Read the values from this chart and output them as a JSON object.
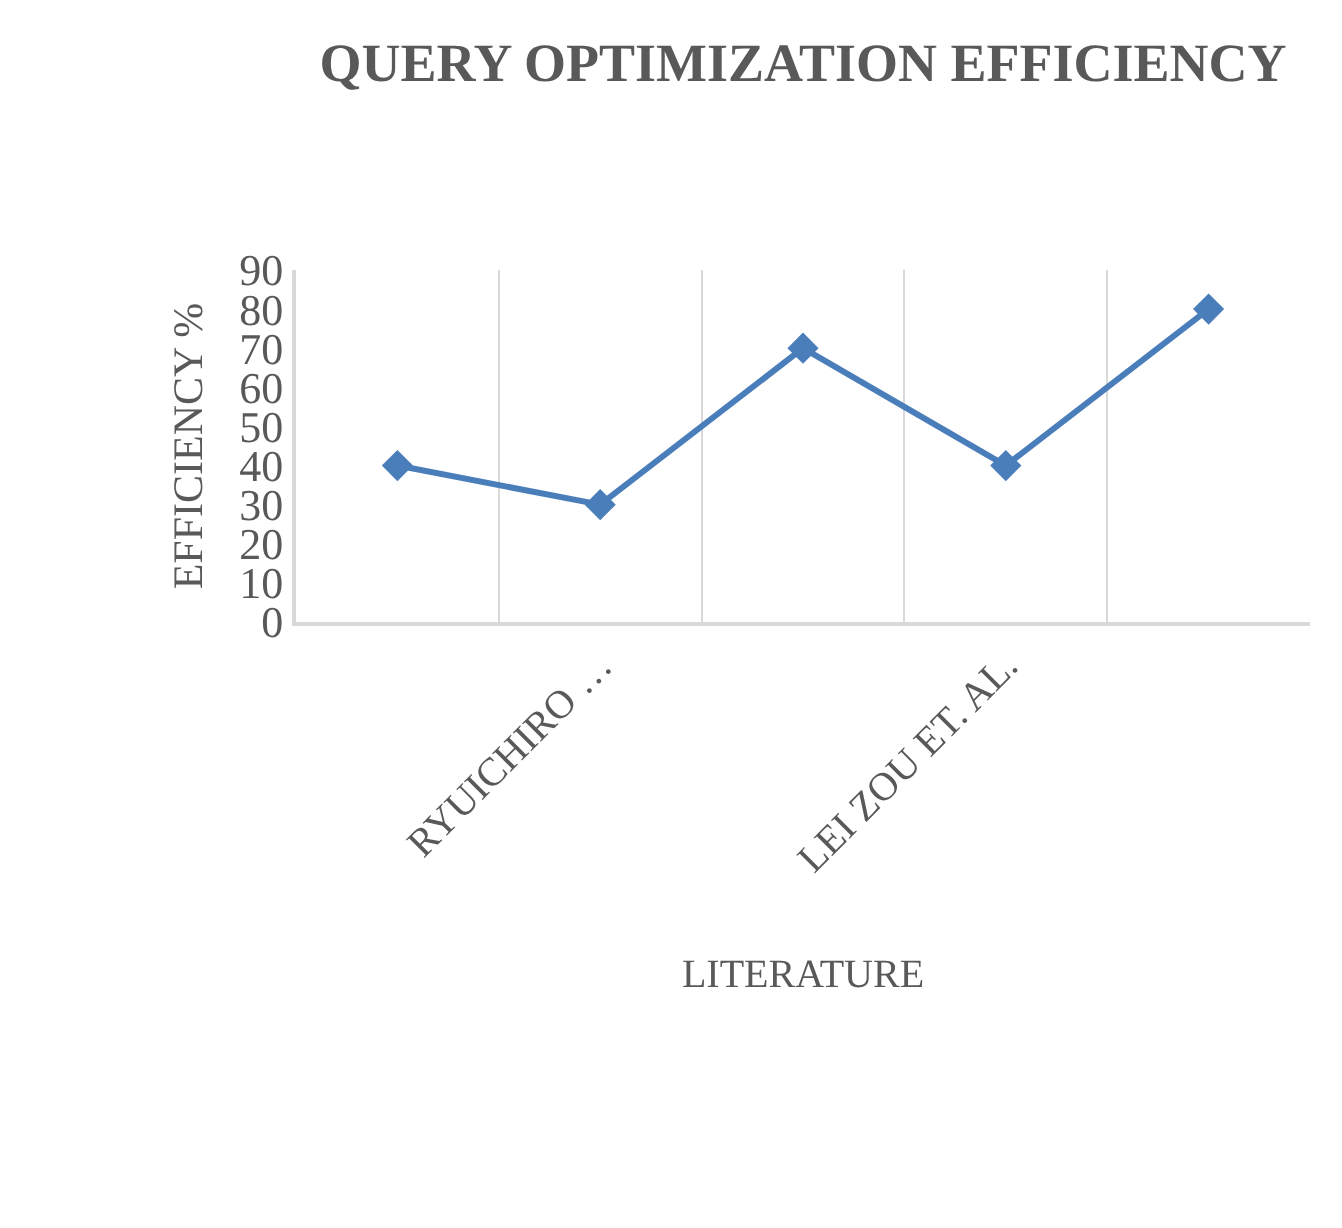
{
  "chart_data": {
    "type": "line",
    "title": "QUERY OPTIMIZATION EFFICIENCY",
    "xlabel": "LITERATURE",
    "ylabel": "EFFICIENCY %",
    "categories": [
      null,
      "RYUICHIRO …",
      null,
      "LEI ZOU ET. AL.",
      null
    ],
    "series": [
      {
        "color": "#4a7ebb",
        "values": [
          40,
          30,
          70,
          40,
          80
        ]
      }
    ],
    "ylim": [
      0,
      90
    ],
    "yticks": [
      0,
      10,
      20,
      30,
      40,
      50,
      60,
      70,
      80,
      90
    ],
    "grid": "x",
    "legend": false,
    "marker": "diamond",
    "line_style": "solid"
  }
}
